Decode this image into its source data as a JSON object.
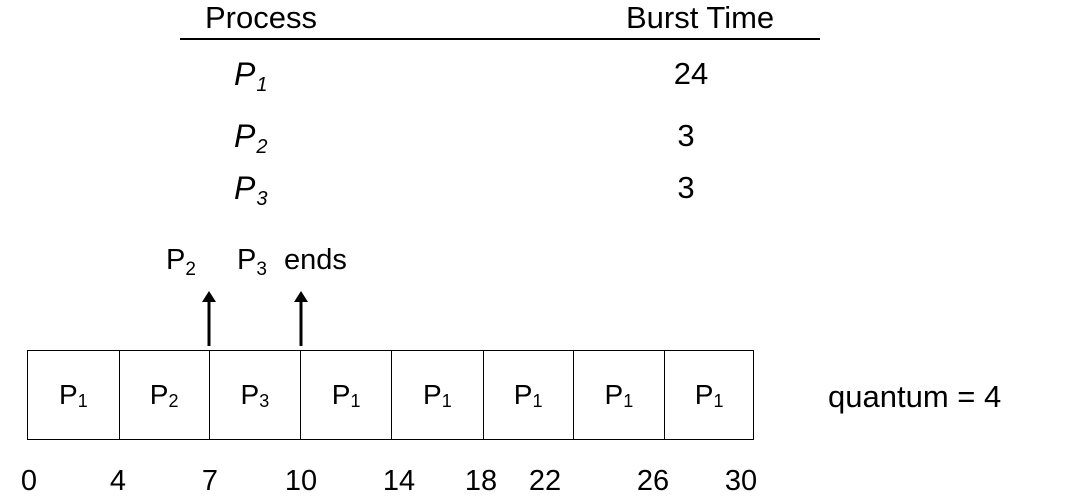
{
  "table": {
    "header_process": "Process",
    "header_burst": "Burst Time",
    "rows": [
      {
        "name": "P",
        "sub": "1",
        "burst": "24"
      },
      {
        "name": "P",
        "sub": "2",
        "burst": "3"
      },
      {
        "name": "P",
        "sub": "3",
        "burst": "3"
      }
    ]
  },
  "annotation": {
    "p2": {
      "name": "P",
      "sub": "2"
    },
    "p3": {
      "name": "P",
      "sub": "3"
    },
    "ends": "ends"
  },
  "gantt": {
    "cells": [
      {
        "name": "P",
        "sub": "1",
        "start": 0,
        "end": 4
      },
      {
        "name": "P",
        "sub": "2",
        "start": 4,
        "end": 7
      },
      {
        "name": "P",
        "sub": "3",
        "start": 7,
        "end": 10
      },
      {
        "name": "P",
        "sub": "1",
        "start": 10,
        "end": 14
      },
      {
        "name": "P",
        "sub": "1",
        "start": 14,
        "end": 18
      },
      {
        "name": "P",
        "sub": "1",
        "start": 18,
        "end": 22
      },
      {
        "name": "P",
        "sub": "1",
        "start": 22,
        "end": 26
      },
      {
        "name": "P",
        "sub": "1",
        "start": 26,
        "end": 30
      }
    ],
    "ticks": [
      "0",
      "4",
      "7",
      "10",
      "14",
      "18",
      "22",
      "26",
      "30"
    ]
  },
  "quantum_label": "quantum = 4"
}
